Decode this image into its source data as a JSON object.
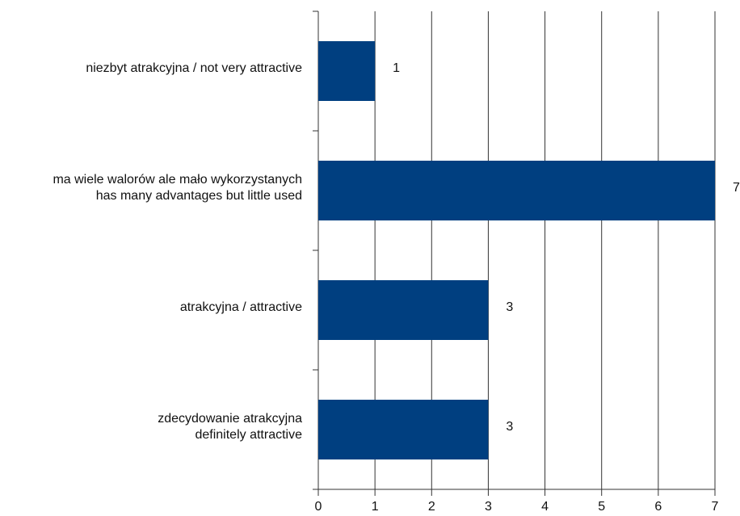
{
  "chart_data": {
    "type": "barh",
    "categories": [
      [
        "niezbyt atrakcyjna / not very attractive"
      ],
      [
        "ma wiele walorów ale mało wykorzystanych",
        "has many advantages but little used"
      ],
      [
        "atrakcyjna / attractive"
      ],
      [
        "zdecydowanie atrakcyjna",
        "definitely attractive"
      ]
    ],
    "values": [
      1,
      7,
      3,
      3
    ],
    "color": "#003f80",
    "xlim": [
      0,
      7
    ],
    "xticks": [
      0,
      1,
      2,
      3,
      4,
      5,
      6,
      7
    ],
    "grid": true
  }
}
